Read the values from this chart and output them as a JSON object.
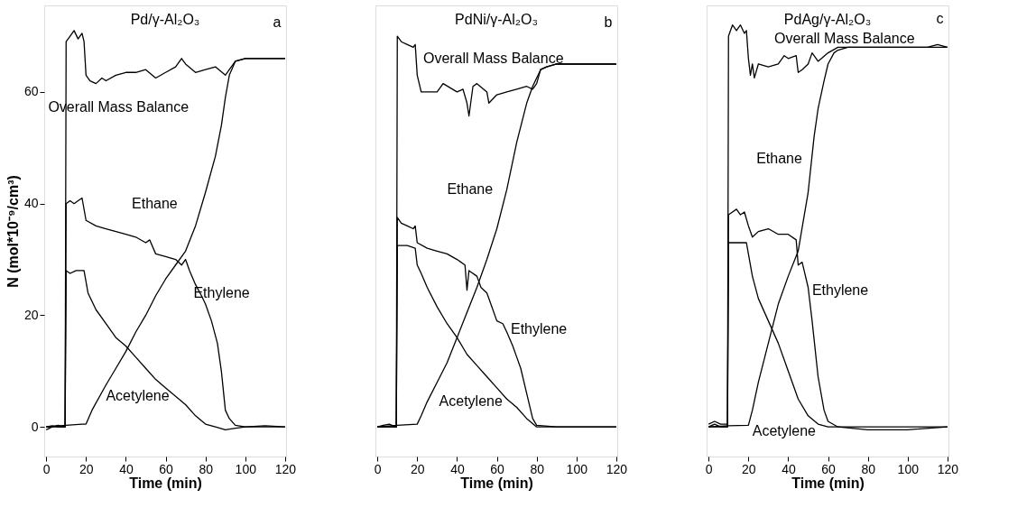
{
  "chart_data": [
    {
      "type": "line",
      "title": "Pd/γ-Al₂O₃",
      "xlabel": "Time (min)",
      "ylabel": "N (mol*10⁻⁹/cm³)",
      "xlim": [
        -1,
        120.5
      ],
      "ylim": [
        -5.3,
        75.5
      ],
      "xticks": [
        0,
        20,
        40,
        60,
        80,
        100,
        120
      ],
      "yticks": [
        0,
        20,
        40,
        60
      ],
      "grid": false,
      "marker": "none",
      "line_style": "solid",
      "series": [
        {
          "color": "#000000",
          "x": [
            0,
            3,
            6,
            9,
            9.5,
            10,
            12,
            14,
            16,
            18,
            19,
            20,
            22,
            25,
            28,
            30,
            35,
            40,
            45,
            50,
            55,
            60,
            65,
            68,
            70,
            75,
            80,
            85,
            90,
            92,
            95,
            100,
            110,
            120
          ],
          "values": [
            -0.5,
            0,
            0.3,
            0,
            0,
            69,
            70,
            71,
            69.5,
            70.5,
            69,
            63,
            62,
            61.5,
            62.5,
            62,
            63,
            63.5,
            63.5,
            64,
            62.5,
            63.5,
            64.5,
            66,
            65,
            63.5,
            64,
            64.5,
            63,
            64,
            65.5,
            66,
            66,
            66
          ]
        },
        {
          "color": "#000000",
          "x": [
            0,
            3,
            6,
            9,
            9.5,
            10,
            12,
            14,
            16,
            18,
            20,
            25,
            30,
            35,
            40,
            45,
            50,
            52,
            55,
            60,
            65,
            68,
            70,
            72,
            75,
            78,
            80,
            83,
            86,
            88,
            90,
            92,
            95,
            100,
            110,
            120
          ],
          "values": [
            0,
            0.2,
            0,
            0,
            0,
            40,
            40.5,
            40,
            40.5,
            41,
            37,
            36,
            35.5,
            35,
            34.5,
            34,
            33,
            33.5,
            31,
            30.5,
            30,
            29,
            30,
            28,
            25.5,
            23.5,
            22,
            19,
            15,
            10,
            3,
            1.5,
            0.3,
            0,
            0.2,
            0
          ]
        },
        {
          "color": "#000000",
          "x": [
            0,
            5,
            9,
            9.5,
            10,
            12,
            15,
            19,
            21,
            25,
            30,
            35,
            40,
            45,
            50,
            55,
            60,
            65,
            70,
            75,
            80,
            85,
            90,
            100,
            110,
            120
          ],
          "values": [
            0,
            0,
            0,
            0,
            28,
            27.5,
            28,
            28,
            24,
            21,
            18.5,
            16,
            14.5,
            12.5,
            10.5,
            8.5,
            7,
            5.5,
            4,
            2,
            0.5,
            0,
            -0.5,
            0,
            0,
            0
          ]
        },
        {
          "color": "#000000",
          "x": [
            0,
            10,
            18,
            20,
            23,
            30,
            35,
            40,
            45,
            50,
            55,
            60,
            65,
            70,
            75,
            80,
            85,
            88,
            90,
            92,
            95,
            100,
            110,
            120
          ],
          "values": [
            0,
            0.3,
            0.5,
            0.5,
            3,
            7.5,
            10.5,
            13.5,
            17,
            20,
            23.5,
            26.5,
            29,
            31.5,
            36,
            42,
            48.5,
            54,
            59,
            63,
            65.5,
            66,
            66,
            66
          ]
        }
      ],
      "annotations": [
        "a",
        "Overall Mass Balance",
        "Ethane",
        "Ethylene",
        "Acetylene"
      ]
    },
    {
      "type": "line",
      "title": "PdNi/γ-Al₂O₃",
      "xlabel": "Time (min)",
      "xlim": [
        -1,
        120.5
      ],
      "ylim": [
        -5.3,
        75.5
      ],
      "xticks": [
        0,
        20,
        40,
        60,
        80,
        100,
        120
      ],
      "tick_labels": "x",
      "grid": false,
      "marker": "none",
      "line_style": "solid",
      "series": [
        {
          "color": "#000000",
          "x": [
            0,
            3,
            6,
            9,
            9.5,
            10,
            12,
            15,
            18,
            19,
            20,
            22,
            25,
            30,
            33,
            40,
            43,
            45,
            46,
            48,
            50,
            55,
            56,
            60,
            65,
            70,
            75,
            78,
            80,
            82,
            85,
            90,
            100,
            110,
            120
          ],
          "values": [
            0,
            0.3,
            0.5,
            0,
            0,
            70,
            69,
            68.5,
            68,
            68.5,
            63,
            60,
            60,
            60,
            61.5,
            60,
            60.5,
            58,
            55.7,
            61,
            61.5,
            60,
            58,
            59.5,
            60,
            60.5,
            61,
            60.5,
            61.5,
            64,
            64.5,
            65,
            65,
            65,
            65
          ]
        },
        {
          "color": "#000000",
          "x": [
            0,
            5,
            9,
            9.5,
            10,
            12,
            15,
            18,
            19,
            20,
            25,
            30,
            35,
            40,
            44,
            45,
            46,
            50,
            52,
            55,
            57,
            60,
            63,
            65,
            68,
            70,
            72,
            75,
            78,
            80,
            90,
            100,
            110,
            120
          ],
          "values": [
            0,
            0,
            0,
            0,
            37.5,
            36.5,
            36,
            35.5,
            36,
            33,
            32,
            31.5,
            31,
            30,
            29,
            24.5,
            28,
            27,
            25,
            24,
            22,
            19,
            18.5,
            17,
            14.5,
            12.5,
            10.5,
            6,
            1.5,
            0.3,
            0,
            0,
            0,
            0
          ]
        },
        {
          "color": "#000000",
          "x": [
            0,
            5,
            9,
            9.5,
            10,
            15,
            19,
            20,
            22,
            25,
            30,
            35,
            40,
            45,
            50,
            55,
            60,
            65,
            70,
            75,
            80,
            90,
            100,
            120
          ],
          "values": [
            0,
            0,
            0,
            0,
            32.5,
            32.5,
            32,
            29,
            27.5,
            25,
            21.5,
            18.5,
            16,
            13,
            11,
            9,
            7,
            5,
            3.5,
            1.5,
            0,
            0,
            0,
            0
          ]
        },
        {
          "color": "#000000",
          "x": [
            0,
            10,
            20,
            22,
            25,
            30,
            35,
            40,
            45,
            50,
            55,
            60,
            65,
            70,
            75,
            78,
            80,
            82,
            85,
            90,
            100,
            120
          ],
          "values": [
            0,
            0.3,
            0.5,
            2,
            4.5,
            8,
            11.5,
            16,
            20.5,
            25,
            30,
            35.5,
            42.5,
            51,
            58,
            61,
            62.5,
            64,
            64.5,
            65,
            65,
            65
          ]
        }
      ],
      "annotations": [
        "b",
        "Overall Mass Balance",
        "Ethane",
        "Ethylene",
        "Acetylene"
      ]
    },
    {
      "type": "line",
      "title": "PdAg/γ-Al₂O₃",
      "xlabel": "Time (min)",
      "xlim": [
        -1,
        120.5
      ],
      "ylim": [
        -5.3,
        75.5
      ],
      "xticks": [
        0,
        20,
        40,
        60,
        80,
        100,
        120
      ],
      "tick_labels": "x",
      "grid": false,
      "marker": "none",
      "line_style": "solid",
      "series": [
        {
          "color": "#000000",
          "x": [
            0,
            3,
            6,
            9,
            9.5,
            10,
            12,
            14,
            16,
            18,
            19,
            20,
            21,
            22,
            23,
            25,
            30,
            35,
            38,
            40,
            44,
            45,
            47,
            50,
            52,
            55,
            60,
            65,
            70,
            80,
            100,
            110,
            115,
            120
          ],
          "values": [
            0.5,
            1,
            0.5,
            0.5,
            0.5,
            70,
            72,
            71,
            72,
            70.5,
            71,
            66,
            63,
            65,
            62.5,
            65,
            64.5,
            65,
            66.5,
            66,
            66.5,
            63.5,
            64,
            65,
            67,
            65.5,
            67,
            68,
            68,
            68,
            68,
            68,
            68.5,
            68
          ]
        },
        {
          "color": "#000000",
          "x": [
            0,
            3,
            6,
            9,
            9.5,
            10,
            12,
            14,
            16,
            18,
            20,
            22,
            25,
            30,
            35,
            40,
            44,
            45,
            47,
            48,
            50,
            52,
            55,
            58,
            60,
            65,
            80,
            100,
            120
          ],
          "values": [
            0,
            0.5,
            0,
            0,
            0,
            38,
            38.5,
            39,
            38,
            38.5,
            36,
            34,
            35,
            35.5,
            34.5,
            34.5,
            33.5,
            29,
            29.5,
            28,
            25,
            19,
            9,
            3,
            1,
            0,
            -0.5,
            -0.5,
            0
          ]
        },
        {
          "color": "#000000",
          "x": [
            0,
            5,
            9,
            9.5,
            10,
            15,
            19,
            20,
            22,
            25,
            30,
            35,
            40,
            45,
            50,
            55,
            60,
            80,
            100,
            120
          ],
          "values": [
            0,
            0,
            0,
            0,
            33,
            33,
            33,
            31,
            27,
            23,
            19,
            15,
            10,
            5,
            2,
            0.5,
            0,
            0,
            0,
            0
          ]
        },
        {
          "color": "#000000",
          "x": [
            0,
            10,
            20,
            22,
            25,
            30,
            35,
            40,
            45,
            50,
            53,
            55,
            58,
            60,
            63,
            65,
            70,
            120
          ],
          "values": [
            0,
            0.2,
            0.3,
            3,
            8,
            15,
            22,
            27,
            31.5,
            42,
            52,
            57,
            62,
            65,
            67,
            67.5,
            68,
            68
          ]
        }
      ],
      "annotations": [
        "c",
        "Overall Mass Balance",
        "Ethane",
        "Ethylene",
        "Acetylene"
      ]
    }
  ]
}
